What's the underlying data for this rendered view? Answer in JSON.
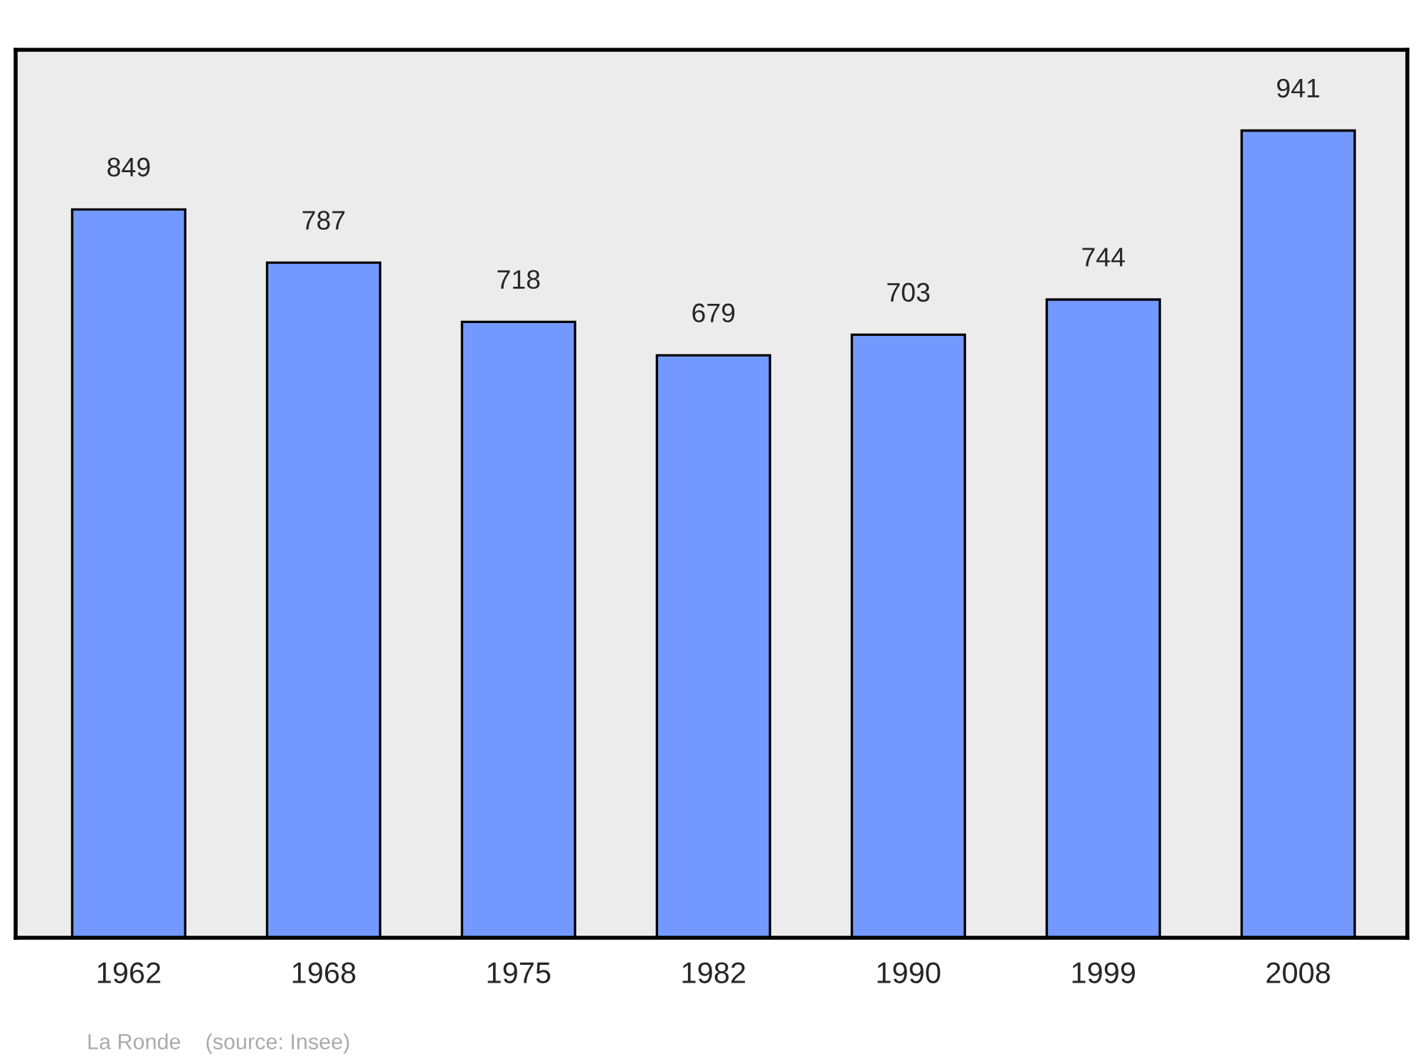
{
  "chart_data": {
    "type": "bar",
    "categories": [
      "1962",
      "1968",
      "1975",
      "1982",
      "1990",
      "1999",
      "2008"
    ],
    "values": [
      849,
      787,
      718,
      679,
      703,
      744,
      941
    ],
    "color": "#7399ff",
    "data_labels": true,
    "grid": false,
    "annotations": [
      "La Ronde    (source: Insee)"
    ]
  }
}
